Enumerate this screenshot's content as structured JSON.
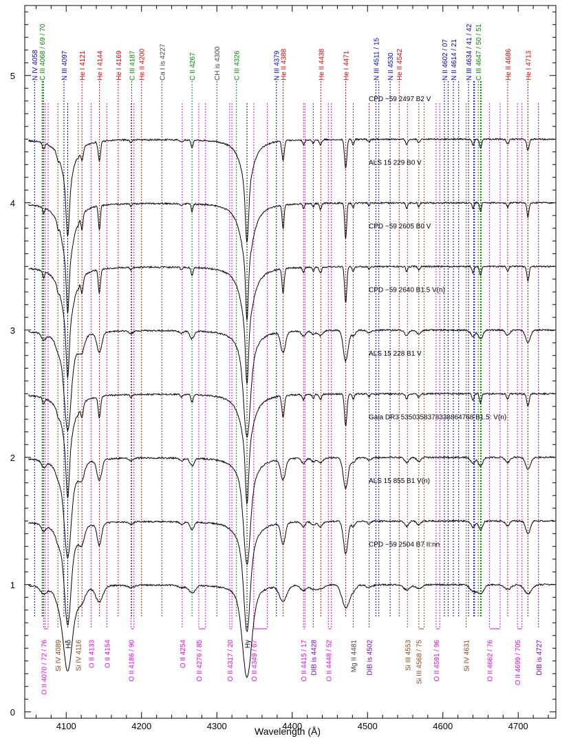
{
  "chart_data": {
    "type": "line",
    "title": "",
    "xlabel": "Wavelength (Å)",
    "ylabel": "",
    "xlim": [
      4045,
      4750
    ],
    "ylim": [
      -0.05,
      5.55
    ],
    "x_ticks": [
      4100,
      4200,
      4300,
      4400,
      4500,
      4600,
      4700
    ],
    "y_ticks": [
      0,
      1,
      2,
      3,
      4,
      5
    ],
    "grid": false,
    "spectra": [
      {
        "name": "CPD −59 2497   B2 V",
        "offset": 4.5,
        "strength": 0.75,
        "rot": 1.0
      },
      {
        "name": "ALS 15 229   B0 V",
        "offset": 4.0,
        "strength": 0.95,
        "rot": 0.8
      },
      {
        "name": "CPD −59 2605   B0 V",
        "offset": 3.5,
        "strength": 0.95,
        "rot": 0.9
      },
      {
        "name": "CPD −59 2640   B1.5 V(n)",
        "offset": 3.0,
        "strength": 0.8,
        "rot": 2.0
      },
      {
        "name": "ALS 15 228   B1 V",
        "offset": 2.5,
        "strength": 0.85,
        "rot": 1.0
      },
      {
        "name": "Gaia DR3 5350358378338864768   B1.5: V(n)",
        "offset": 2.0,
        "strength": 0.8,
        "rot": 2.0
      },
      {
        "name": "ALS 15 855   B1 V(n)",
        "offset": 1.5,
        "strength": 0.85,
        "rot": 1.8
      },
      {
        "name": "CPD −59 2504   B7 II:nn",
        "offset": 1.0,
        "strength": 0.6,
        "rot": 3.0
      }
    ],
    "top_lines": [
      {
        "label": "N IV 4058",
        "wl": [
          4058
        ],
        "color": "#0000cc"
      },
      {
        "label": "C III 4068 / 69 / 70",
        "wl": [
          4068,
          4069,
          4070
        ],
        "color": "#008800"
      },
      {
        "label": "N III 4097",
        "wl": [
          4097
        ],
        "color": "#0000cc"
      },
      {
        "label": "He I 4121",
        "wl": [
          4121
        ],
        "color": "#dd0000"
      },
      {
        "label": "He I 4144",
        "wl": [
          4144
        ],
        "color": "#dd0000"
      },
      {
        "label": "He I 4169",
        "wl": [
          4169
        ],
        "color": "#dd0000"
      },
      {
        "label": "C III 4187",
        "wl": [
          4187
        ],
        "color": "#008800"
      },
      {
        "label": "He II 4200",
        "wl": [
          4200
        ],
        "color": "#dd0000"
      },
      {
        "label": "Ca I is 4227",
        "wl": [
          4227
        ],
        "color": "#444444"
      },
      {
        "label": "C II 4267",
        "wl": [
          4267
        ],
        "color": "#008800"
      },
      {
        "label": "CH is 4300",
        "wl": [
          4300
        ],
        "color": "#444444"
      },
      {
        "label": "C III 4326",
        "wl": [
          4326
        ],
        "color": "#008800"
      },
      {
        "label": "N III 4379",
        "wl": [
          4379
        ],
        "color": "#0000cc"
      },
      {
        "label": "He II 4388",
        "wl": [
          4388
        ],
        "color": "#dd0000"
      },
      {
        "label": "He II 4438",
        "wl": [
          4438
        ],
        "color": "#dd0000"
      },
      {
        "label": "He I 4471",
        "wl": [
          4471
        ],
        "color": "#dd0000"
      },
      {
        "label": "N III 4511 / 15",
        "wl": [
          4511,
          4515
        ],
        "color": "#0000cc"
      },
      {
        "label": "N II 4530",
        "wl": [
          4530
        ],
        "color": "#0000cc"
      },
      {
        "label": "He II 4542",
        "wl": [
          4542
        ],
        "color": "#dd0000"
      },
      {
        "label": "N II 4602 / 07",
        "wl": [
          4602,
          4607
        ],
        "color": "#0000cc"
      },
      {
        "label": "N II 4614 / 21",
        "wl": [
          4614,
          4621
        ],
        "color": "#0000cc"
      },
      {
        "label": "N III 4634 / 41 / 42",
        "wl": [
          4634,
          4641,
          4642
        ],
        "color": "#0000cc"
      },
      {
        "label": "C III 4647 / 50 / 51",
        "wl": [
          4647,
          4650,
          4651
        ],
        "color": "#008800"
      },
      {
        "label": "He II 4686",
        "wl": [
          4686
        ],
        "color": "#dd0000"
      },
      {
        "label": "He I 4713",
        "wl": [
          4713
        ],
        "color": "#dd0000"
      }
    ],
    "bottom_lines": [
      {
        "label": "O II 4070 / 72 / 76",
        "wl": [
          4070,
          4072,
          4076
        ],
        "color": "#ee00ee"
      },
      {
        "label": "Si IV 4089",
        "wl": [
          4089
        ],
        "color": "#8b4513"
      },
      {
        "label": "Hδ",
        "wl": [
          4102
        ],
        "color": "#000000"
      },
      {
        "label": "Si IV 4116",
        "wl": [
          4116
        ],
        "color": "#8b4513"
      },
      {
        "label": "O II 4133",
        "wl": [
          4133
        ],
        "color": "#ee00ee"
      },
      {
        "label": "O II 4154",
        "wl": [
          4154
        ],
        "color": "#ee00ee"
      },
      {
        "label": "O II 4186 / 90",
        "wl": [
          4186,
          4190
        ],
        "color": "#ee00ee"
      },
      {
        "label": "O II 4254",
        "wl": [
          4254
        ],
        "color": "#ee00ee"
      },
      {
        "label": "O II 4276 / 85",
        "wl": [
          4276,
          4285
        ],
        "color": "#ee00ee"
      },
      {
        "label": "O II 4317 / 20",
        "wl": [
          4317,
          4320
        ],
        "color": "#ee00ee"
      },
      {
        "label": "Hγ",
        "wl": [
          4340
        ],
        "color": "#000000"
      },
      {
        "label": "O II 4349 / 67",
        "wl": [
          4349,
          4367
        ],
        "color": "#ee00ee"
      },
      {
        "label": "O II 4415 / 17",
        "wl": [
          4415,
          4417
        ],
        "color": "#ee00ee"
      },
      {
        "label": "DIB is 4428",
        "wl": [
          4428
        ],
        "color": "#7700cc"
      },
      {
        "label": "O II 4448 / 52",
        "wl": [
          4448,
          4452
        ],
        "color": "#ee00ee"
      },
      {
        "label": "Mg II 4481",
        "wl": [
          4481
        ],
        "color": "#444444"
      },
      {
        "label": "DIB is 4502",
        "wl": [
          4502
        ],
        "color": "#7700cc"
      },
      {
        "label": "Si III 4553",
        "wl": [
          4553
        ],
        "color": "#8b4513"
      },
      {
        "label": "Si III 4568 / 75",
        "wl": [
          4568,
          4575
        ],
        "color": "#8b4513"
      },
      {
        "label": "O II 4591 / 96",
        "wl": [
          4591,
          4596
        ],
        "color": "#ee00ee"
      },
      {
        "label": "Si IV 4631",
        "wl": [
          4631
        ],
        "color": "#8b4513"
      },
      {
        "label": "O II 4662 / 76",
        "wl": [
          4662,
          4676
        ],
        "color": "#ee00ee"
      },
      {
        "label": "O II 4699 / 705",
        "wl": [
          4699,
          4705
        ],
        "color": "#ee00ee"
      },
      {
        "label": "DIB is 4727",
        "wl": [
          4727
        ],
        "color": "#7700cc"
      }
    ]
  }
}
